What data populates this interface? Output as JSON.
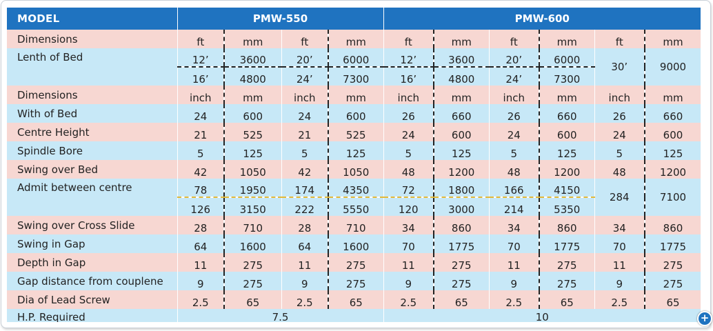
{
  "header": {
    "model_label": "MODEL",
    "model_a": "PMW-550",
    "model_b": "PMW-600"
  },
  "rows": {
    "dims1": {
      "label": "Dimensions",
      "units": [
        "ft",
        "mm",
        "ft",
        "mm",
        "ft",
        "mm",
        "ft",
        "mm",
        "ft",
        "mm"
      ]
    },
    "bed": {
      "label": "Lenth of Bed",
      "r1": [
        "12’",
        "3600",
        "20’",
        "6000",
        "12’",
        "3600",
        "20’",
        "6000"
      ],
      "r2": [
        "16’",
        "4800",
        "24’",
        "7300",
        "16’",
        "4800",
        "24’",
        "7300"
      ],
      "last": [
        "30’",
        "9000"
      ]
    },
    "dims2": {
      "label": "Dimensions",
      "units": [
        "inch",
        "mm",
        "inch",
        "mm",
        "inch",
        "mm",
        "inch",
        "mm",
        "inch",
        "mm"
      ]
    },
    "width": {
      "label": "With of Bed",
      "values": [
        "24",
        "600",
        "24",
        "600",
        "26",
        "660",
        "26",
        "660",
        "26",
        "660"
      ]
    },
    "centre": {
      "label": "Centre Height",
      "values": [
        "21",
        "525",
        "21",
        "525",
        "24",
        "600",
        "24",
        "600",
        "24",
        "600"
      ]
    },
    "spindle": {
      "label": "Spindle Bore",
      "values": [
        "5",
        "125",
        "5",
        "125",
        "5",
        "125",
        "5",
        "125",
        "5",
        "125"
      ]
    },
    "swing_bed": {
      "label": "Swing over Bed",
      "values": [
        "42",
        "1050",
        "42",
        "1050",
        "48",
        "1200",
        "48",
        "1200",
        "48",
        "1200"
      ]
    },
    "admit": {
      "label": "Admit between centre",
      "r1": [
        "78",
        "1950",
        "174",
        "4350",
        "72",
        "1800",
        "166",
        "4150"
      ],
      "r2": [
        "126",
        "3150",
        "222",
        "5550",
        "120",
        "3000",
        "214",
        "5350"
      ],
      "last": [
        "284",
        "7100"
      ]
    },
    "cross": {
      "label": "Swing over Cross Slide",
      "values": [
        "28",
        "710",
        "28",
        "710",
        "34",
        "860",
        "34",
        "860",
        "34",
        "860"
      ]
    },
    "gap": {
      "label": "Swing in Gap",
      "values": [
        "64",
        "1600",
        "64",
        "1600",
        "70",
        "1775",
        "70",
        "1775",
        "70",
        "1775"
      ]
    },
    "depth": {
      "label": "Depth in Gap",
      "values": [
        "11",
        "275",
        "11",
        "275",
        "11",
        "275",
        "11",
        "275",
        "11",
        "275"
      ]
    },
    "gapdist": {
      "label": "Gap distance from couplene",
      "values": [
        "9",
        "275",
        "9",
        "275",
        "9",
        "275",
        "9",
        "275",
        "9",
        "275"
      ]
    },
    "lead": {
      "label": "Dia of Lead Screw",
      "values": [
        "2.5",
        "65",
        "2.5",
        "65",
        "2.5",
        "65",
        "2.5",
        "65",
        "2.5",
        "65"
      ]
    },
    "hp": {
      "label": "H.P. Required",
      "a": "7.5",
      "b": "10"
    }
  },
  "icons": {
    "expand": "plus-circle-icon",
    "expand_glyph": "+"
  },
  "colors": {
    "header": "#1f73c0",
    "pink_row": "#f7d7d2",
    "blue_row": "#c7e8f7",
    "yellow_divider": "#e3b838"
  }
}
